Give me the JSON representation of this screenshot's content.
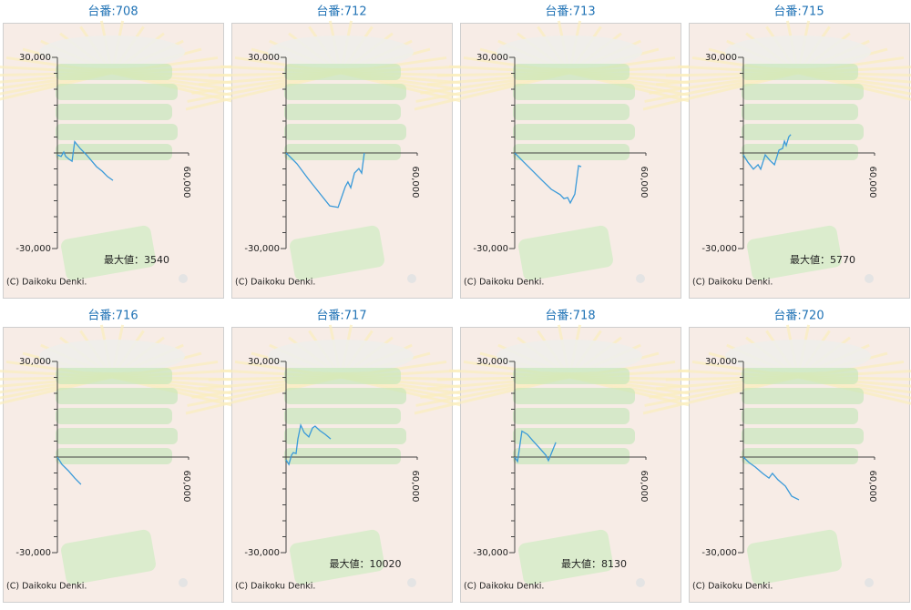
{
  "chart_data": [
    {
      "type": "line",
      "title": "台番:708",
      "x": [
        0,
        1700,
        2900,
        3800,
        5400,
        6700,
        7900,
        10400,
        13300,
        15800,
        17900,
        20400,
        22900,
        25400
      ],
      "series": [
        {
          "color": "#3a9ad9",
          "values": [
            -600,
            -1100,
            300,
            -1100,
            -2000,
            -2600,
            3540,
            1400,
            -600,
            -2600,
            -4300,
            -5700,
            -7400,
            -8600
          ]
        }
      ],
      "xlim": [
        0,
        60000
      ],
      "xticks": [
        {
          "value": 60000,
          "label": "60,000"
        }
      ],
      "ylim": [
        -30000,
        30000
      ],
      "yticks": [
        {
          "value": 30000,
          "label": "30,000"
        },
        {
          "value": -30000,
          "label": "-30,000"
        }
      ],
      "minor_yticks": [
        -25000,
        -20000,
        -15000,
        -10000,
        -5000,
        0,
        5000,
        10000,
        15000,
        20000,
        25000
      ],
      "annotation": "最大値：3540",
      "copyright": "(C) Daikoku Denki."
    },
    {
      "type": "line",
      "title": "台番:712",
      "x": [
        0,
        2100,
        5000,
        10000,
        15000,
        20000,
        23800,
        27100,
        28300,
        29600,
        31300,
        33300,
        34600,
        35800
      ],
      "series": [
        {
          "color": "#3a9ad9",
          "values": [
            0,
            -1400,
            -3400,
            -8000,
            -12300,
            -16600,
            -17100,
            -10600,
            -9100,
            -10900,
            -6300,
            -4900,
            -6300,
            0
          ]
        }
      ],
      "xlim": [
        0,
        60000
      ],
      "xticks": [
        {
          "value": 60000,
          "label": "60,000"
        }
      ],
      "ylim": [
        -30000,
        30000
      ],
      "yticks": [
        {
          "value": 30000,
          "label": "30,000"
        },
        {
          "value": -30000,
          "label": "-30,000"
        }
      ],
      "minor_yticks": [
        -25000,
        -20000,
        -15000,
        -10000,
        -5000,
        0,
        5000,
        10000,
        15000,
        20000,
        25000
      ],
      "copyright": "(C) Daikoku Denki."
    },
    {
      "type": "line",
      "title": "台番:713",
      "x": [
        0,
        4200,
        8300,
        12500,
        16700,
        19600,
        20800,
        22500,
        24200,
        25400,
        27500,
        29200,
        30400
      ],
      "series": [
        {
          "color": "#3a9ad9",
          "values": [
            0,
            -2900,
            -5700,
            -8600,
            -11400,
            -12600,
            -13100,
            -14300,
            -14000,
            -15700,
            -12900,
            -4000,
            -4300
          ]
        }
      ],
      "xlim": [
        0,
        60000
      ],
      "xticks": [
        {
          "value": 60000,
          "label": "60,000"
        }
      ],
      "ylim": [
        -30000,
        30000
      ],
      "yticks": [
        {
          "value": 30000,
          "label": "30,000"
        },
        {
          "value": -30000,
          "label": "-30,000"
        }
      ],
      "minor_yticks": [
        -25000,
        -20000,
        -15000,
        -10000,
        -5000,
        0,
        5000,
        10000,
        15000,
        20000,
        25000
      ],
      "copyright": "(C) Daikoku Denki."
    },
    {
      "type": "line",
      "title": "台番:715",
      "x": [
        0,
        2100,
        4600,
        6700,
        7900,
        10000,
        12100,
        14200,
        16300,
        17900,
        18800,
        19600,
        20800,
        21700
      ],
      "series": [
        {
          "color": "#3a9ad9",
          "values": [
            -600,
            -2900,
            -5100,
            -3700,
            -5100,
            -600,
            -2300,
            -3700,
            900,
            1400,
            3700,
            2300,
            5100,
            5770
          ]
        }
      ],
      "xlim": [
        0,
        60000
      ],
      "xticks": [
        {
          "value": 60000,
          "label": "60,000"
        }
      ],
      "ylim": [
        -30000,
        30000
      ],
      "yticks": [
        {
          "value": 30000,
          "label": "30,000"
        },
        {
          "value": -30000,
          "label": "-30,000"
        }
      ],
      "minor_yticks": [
        -25000,
        -20000,
        -15000,
        -10000,
        -5000,
        0,
        5000,
        10000,
        15000,
        20000,
        25000
      ],
      "annotation": "最大値：5770",
      "copyright": "(C) Daikoku Denki."
    },
    {
      "type": "line",
      "title": "台番:716",
      "x": [
        0,
        2100,
        5000,
        7900,
        10800
      ],
      "series": [
        {
          "color": "#3a9ad9",
          "values": [
            0,
            -2300,
            -4300,
            -6600,
            -8600
          ]
        }
      ],
      "xlim": [
        0,
        60000
      ],
      "xticks": [
        {
          "value": 60000,
          "label": "60,000"
        }
      ],
      "ylim": [
        -30000,
        30000
      ],
      "yticks": [
        {
          "value": 30000,
          "label": "30,000"
        },
        {
          "value": -30000,
          "label": "-30,000"
        }
      ],
      "minor_yticks": [
        -25000,
        -20000,
        -15000,
        -10000,
        -5000,
        0,
        5000,
        10000,
        15000,
        20000,
        25000
      ],
      "copyright": "(C) Daikoku Denki."
    },
    {
      "type": "line",
      "title": "台番:717",
      "x": [
        0,
        1300,
        2500,
        3300,
        4600,
        5400,
        6700,
        8300,
        10400,
        12100,
        13300,
        15400,
        17900,
        20400
      ],
      "series": [
        {
          "color": "#3a9ad9",
          "values": [
            -900,
            -2300,
            600,
            1400,
            1100,
            5700,
            10020,
            7700,
            6300,
            9100,
            9700,
            8300,
            7100,
            5700
          ]
        }
      ],
      "xlim": [
        0,
        60000
      ],
      "xticks": [
        {
          "value": 60000,
          "label": "60,000"
        }
      ],
      "ylim": [
        -30000,
        30000
      ],
      "yticks": [
        {
          "value": 30000,
          "label": "30,000"
        },
        {
          "value": -30000,
          "label": "-30,000"
        }
      ],
      "minor_yticks": [
        -25000,
        -20000,
        -15000,
        -10000,
        -5000,
        0,
        5000,
        10000,
        15000,
        20000,
        25000
      ],
      "annotation": "最大値：10020",
      "copyright": "(C) Daikoku Denki."
    },
    {
      "type": "line",
      "title": "台番:718",
      "x": [
        0,
        1300,
        3300,
        5800,
        8300,
        11300,
        14200,
        15400,
        17100,
        18800
      ],
      "series": [
        {
          "color": "#3a9ad9",
          "values": [
            0,
            -1400,
            8130,
            7100,
            5100,
            2900,
            600,
            -1100,
            1700,
            4600
          ]
        }
      ],
      "xlim": [
        0,
        60000
      ],
      "xticks": [
        {
          "value": 60000,
          "label": "60,000"
        }
      ],
      "ylim": [
        -30000,
        30000
      ],
      "yticks": [
        {
          "value": 30000,
          "label": "30,000"
        },
        {
          "value": -30000,
          "label": "-30,000"
        }
      ],
      "minor_yticks": [
        -25000,
        -20000,
        -15000,
        -10000,
        -5000,
        0,
        5000,
        10000,
        15000,
        20000,
        25000
      ],
      "annotation": "最大値：8130",
      "copyright": "(C) Daikoku Denki."
    },
    {
      "type": "line",
      "title": "台番:720",
      "x": [
        0,
        2500,
        5400,
        8800,
        11700,
        13300,
        15800,
        19200,
        22100,
        25400
      ],
      "series": [
        {
          "color": "#3a9ad9",
          "values": [
            0,
            -1700,
            -3100,
            -5100,
            -6600,
            -5100,
            -7100,
            -9100,
            -12300,
            -13400
          ]
        }
      ],
      "xlim": [
        0,
        60000
      ],
      "xticks": [
        {
          "value": 60000,
          "label": "60,000"
        }
      ],
      "ylim": [
        -30000,
        30000
      ],
      "yticks": [
        {
          "value": 30000,
          "label": "30,000"
        },
        {
          "value": -30000,
          "label": "-30,000"
        }
      ],
      "minor_yticks": [
        -25000,
        -20000,
        -15000,
        -10000,
        -5000,
        0,
        5000,
        10000,
        15000,
        20000,
        25000
      ],
      "copyright": "(C) Daikoku Denki."
    }
  ]
}
